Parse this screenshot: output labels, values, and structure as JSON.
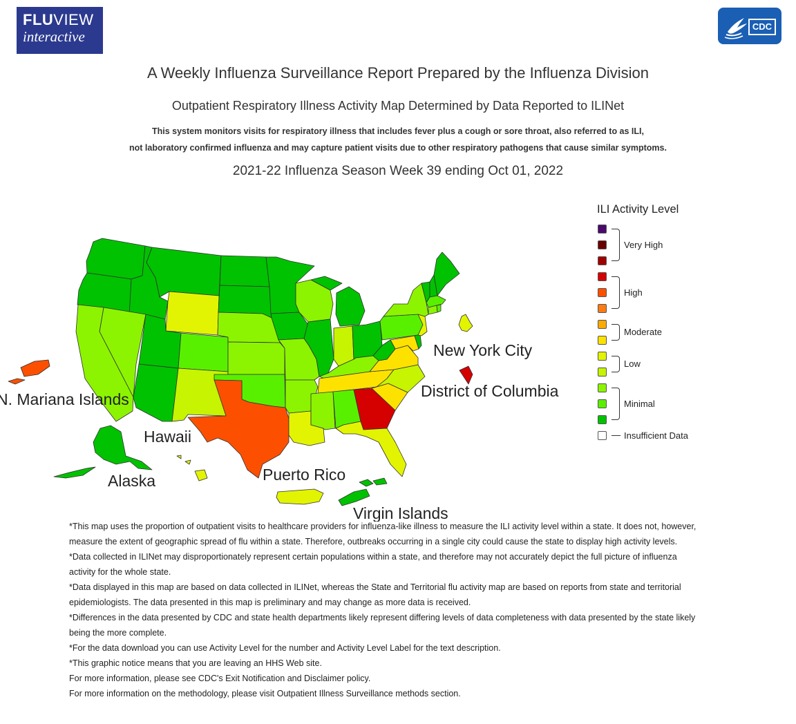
{
  "logos": {
    "fluview_bold": "FLU",
    "fluview_thin": "VIEW",
    "fluview_sub": "interactive",
    "cdc": "CDC"
  },
  "header": {
    "title": "A Weekly Influenza Surveillance Report Prepared by the Influenza Division",
    "subtitle": "Outpatient Respiratory Illness Activity Map Determined by Data Reported to ILINet",
    "description_line1": "This system monitors visits for respiratory illness that includes fever plus a cough or sore throat, also referred to as ILI,",
    "description_line2": "not laboratory confirmed influenza and may capture patient visits due to other respiratory pathogens that cause similar symptoms.",
    "season_week": "2021-22 Influenza Season Week 39 ending Oct 01, 2022"
  },
  "map_labels": {
    "nyc": "New York City",
    "dc": "District of Columbia",
    "mariana": "N. Mariana Islands",
    "hawaii": "Hawaii",
    "alaska": "Alaska",
    "puerto_rico": "Puerto Rico",
    "virgin_islands": "Virgin Islands"
  },
  "legend": {
    "title": "ILI Activity Level",
    "levels": [
      {
        "level": 13,
        "color": "#4a0a6b"
      },
      {
        "level": 12,
        "color": "#6b0000"
      },
      {
        "level": 11,
        "color": "#9e0000"
      },
      {
        "level": 10,
        "color": "#d50000"
      },
      {
        "level": 9,
        "color": "#fc5000"
      },
      {
        "level": 8,
        "color": "#fb7c14"
      },
      {
        "level": 7,
        "color": "#fdab02"
      },
      {
        "level": 6,
        "color": "#fde200"
      },
      {
        "level": 5,
        "color": "#e3f402"
      },
      {
        "level": 4,
        "color": "#c7f400"
      },
      {
        "level": 3,
        "color": "#8cf400"
      },
      {
        "level": 2,
        "color": "#59f000"
      },
      {
        "level": 1,
        "color": "#00c200"
      }
    ],
    "groups": {
      "very_high": "Very High",
      "high": "High",
      "moderate": "Moderate",
      "low": "Low",
      "minimal": "Minimal",
      "insufficient": "Insufficient Data"
    },
    "insufficient_color": "#ffffff"
  },
  "notes": [
    "*This map uses the proportion of outpatient visits to healthcare providers for influenza-like illness to measure the ILI activity level within a state. It does not, however, measure the extent of geographic spread of flu within a state. Therefore, outbreaks occurring in a single city could cause the state to display high activity levels.",
    "*Data collected in ILINet may disproportionately represent certain populations within a state, and therefore may not accurately depict the full picture of influenza activity for the whole state.",
    "*Data displayed in this map are based on data collected in ILINet, whereas the State and Territorial flu activity map are based on reports from state and territorial epidemiologists. The data presented in this map is preliminary and may change as more data is received.",
    "*Differences in the data presented by CDC and state health departments likely represent differing levels of data completeness with data presented by the state likely being the more complete.",
    "*For the data download you can use Activity Level for the number and Activity Level Label for the text description.",
    "*This graphic notice means that you are leaving an HHS Web site.",
    "For more information, please see CDC's Exit Notification and Disclaimer policy.",
    "For more information on the methodology, please visit Outpatient Illness Surveillance methods section."
  ],
  "map_data": {
    "AK": 1,
    "AL": 2,
    "AR": 3,
    "AZ": 1,
    "CA": 3,
    "CO": 2,
    "CT": 3,
    "DC": 10,
    "DE": 1,
    "FL": 5,
    "GA": 10,
    "HI": 5,
    "IA": 1,
    "ID": 1,
    "IL": 1,
    "IN": 4,
    "KS": 3,
    "KY": 3,
    "LA": 5,
    "MA": 2,
    "MD": 6,
    "ME": 1,
    "MI": 1,
    "MN": 1,
    "MO": 3,
    "MS": 3,
    "MT": 1,
    "NC": 4,
    "ND": 1,
    "NE": 3,
    "NH": 1,
    "NJ": 5,
    "NM": 4,
    "NV": 3,
    "NY": 3,
    "NYC": 5,
    "OH": 1,
    "OK": 2,
    "OR": 1,
    "PA": 2,
    "RI": 2,
    "SC": 6,
    "SD": 1,
    "TN": 6,
    "TX": 9,
    "UT": 1,
    "VA": 6,
    "VT": 1,
    "WA": 1,
    "WI": 3,
    "WV": 1,
    "WY": 5,
    "MP": 9,
    "PR": 5,
    "VI": 1
  }
}
